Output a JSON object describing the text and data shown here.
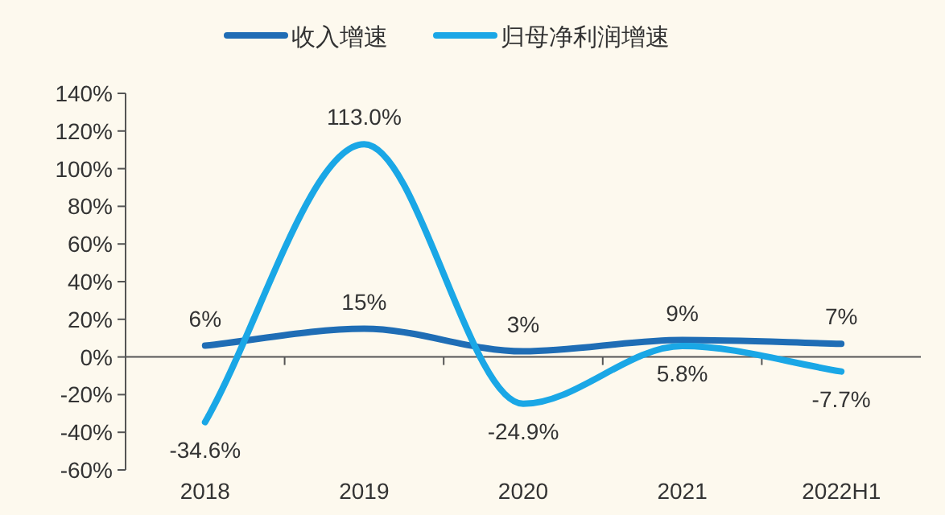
{
  "chart_data": {
    "type": "line",
    "categories": [
      "2018",
      "2019",
      "2020",
      "2021",
      "2022H1"
    ],
    "series": [
      {
        "name": "收入增速",
        "color": "#1f6db5",
        "values": [
          6,
          15,
          3,
          9,
          7
        ]
      },
      {
        "name": "归母净利润增速",
        "color": "#1aa7e6",
        "values": [
          -34.6,
          113.0,
          -24.9,
          5.8,
          -7.7
        ]
      }
    ],
    "value_labels": [
      [
        "6%",
        "15%",
        "3%",
        "9%",
        "7%"
      ],
      [
        "-34.6%",
        "113.0%",
        "-24.9%",
        "5.8%",
        "-7.7%"
      ]
    ],
    "ylim": [
      -60,
      140
    ],
    "yticks": [
      {
        "value": -60,
        "label": "-60%"
      },
      {
        "value": -40,
        "label": "-40%"
      },
      {
        "value": -20,
        "label": "-20%"
      },
      {
        "value": 0,
        "label": "0%"
      },
      {
        "value": 20,
        "label": "20%"
      },
      {
        "value": 40,
        "label": "40%"
      },
      {
        "value": 60,
        "label": "60%"
      },
      {
        "value": 80,
        "label": "80%"
      },
      {
        "value": 100,
        "label": "100%"
      },
      {
        "value": 120,
        "label": "120%"
      },
      {
        "value": 140,
        "label": "140%"
      }
    ],
    "legend": "top"
  }
}
